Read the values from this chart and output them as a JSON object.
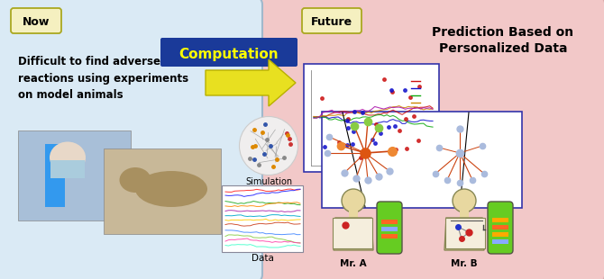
{
  "bg_color": "#f2c8c8",
  "left_panel_color": "#daeaf5",
  "left_panel_border": "#a0b8cc",
  "now_box_color": "#f5f0c0",
  "now_box_border": "#aaa820",
  "future_box_color": "#f5f0c0",
  "future_box_border": "#aaa820",
  "computation_box_color": "#1a3a99",
  "computation_text_color": "#ffff00",
  "arrow_color": "#e8e020",
  "arrow_edge": "#b8b000",
  "now_label": "Now",
  "future_label": "Future",
  "computation_label": "Computation",
  "left_text": "Difficult to find adverse\nreactions using experiments\non model animals",
  "right_title": "Prediction Based on\nPersonalized Data",
  "simulation_label": "Simulation",
  "data_label": "Data",
  "mr_a_label": "Mr. A",
  "mr_b_label": "Mr. B",
  "figsize": [
    6.7,
    3.1
  ],
  "dpi": 100
}
